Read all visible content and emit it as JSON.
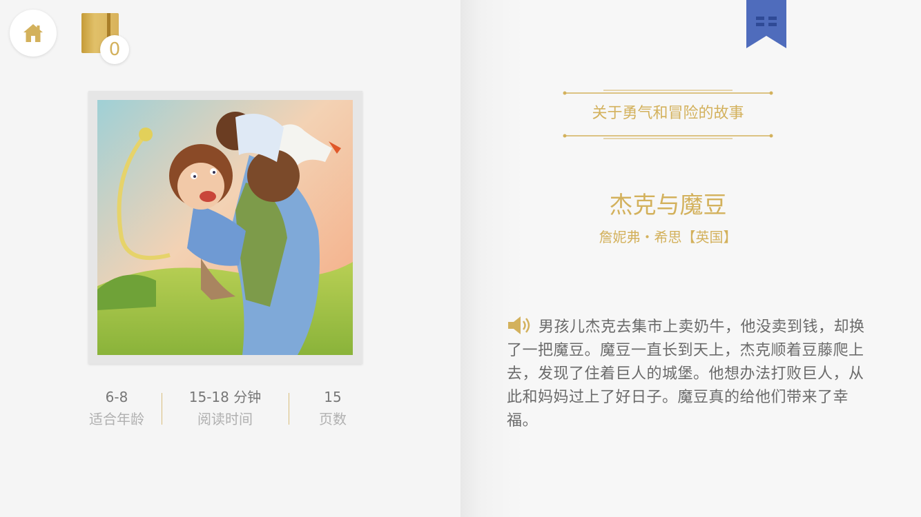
{
  "toolbar": {
    "home_icon": "home-icon",
    "notebook_icon": "notebook-icon",
    "notebook_count": "0",
    "bookmark_icon": "bookmark-icon"
  },
  "book": {
    "series": "关于勇气和冒险的故事",
    "title": "杰克与魔豆",
    "author": "詹妮弗・希思【英国】",
    "summary": "男孩儿杰克去集市上卖奶牛，他没卖到钱，却换了一把魔豆。魔豆一直长到天上，杰克顺着豆藤爬上去，发现了住着巨人的城堡。他想办法打败巨人，从此和妈妈过上了好日子。魔豆真的给他们带来了幸福。",
    "audio_icon": "speaker-icon"
  },
  "stats": [
    {
      "value": "6-8",
      "label": "适合年龄"
    },
    {
      "value": "15-18 分钟",
      "label": "阅读时间"
    },
    {
      "value": "15",
      "label": "页数"
    }
  ],
  "colors": {
    "accent_gold": "#d3b15c",
    "bookmark_blue": "#4f6cbc",
    "text_gray": "#6a6a6a"
  }
}
